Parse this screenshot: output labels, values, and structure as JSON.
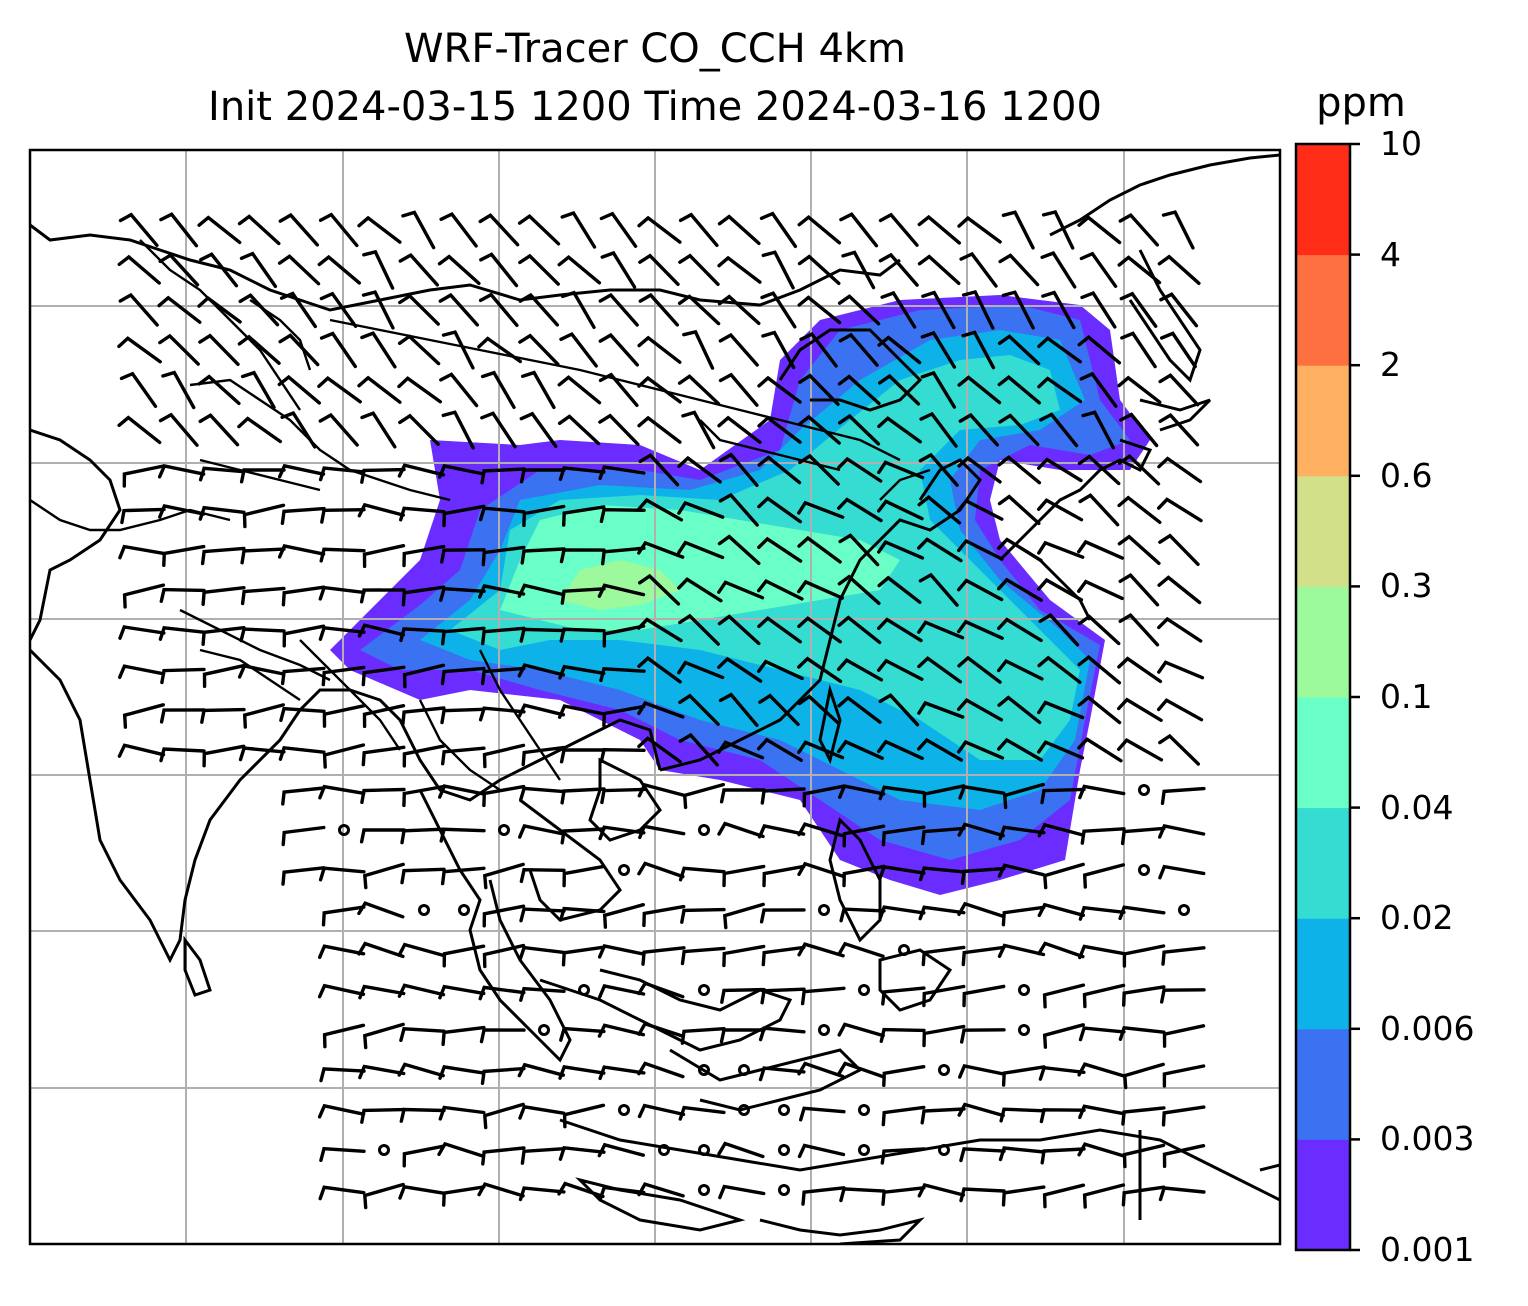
{
  "title": {
    "line1": "WRF-Tracer CO_CCH 4km",
    "line2": "Init 2024-03-15 1200 Time 2024-03-16 1200"
  },
  "colorbar": {
    "unit": "ppm",
    "levels": [
      "0.001",
      "0.003",
      "0.006",
      "0.02",
      "0.04",
      "0.1",
      "0.3",
      "0.6",
      "2",
      "4",
      "10"
    ],
    "colors": [
      "#6a2cff",
      "#3a72f2",
      "#0cb2e8",
      "#34dcd2",
      "#6affc6",
      "#9cfa9c",
      "#d2e08a",
      "#ffb060",
      "#ff7040",
      "#ff2c18"
    ]
  },
  "map": {
    "grid": true,
    "grid_color": "#b0b0b0",
    "coastline_color": "#000000",
    "features": [
      "coastlines",
      "country borders",
      "wind barbs",
      "tracer concentration shading"
    ]
  }
}
